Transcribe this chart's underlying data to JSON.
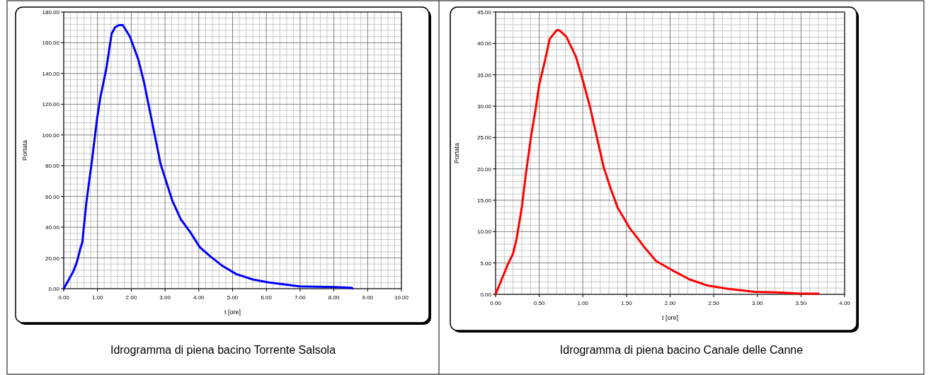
{
  "chart_data": [
    {
      "type": "line",
      "title": "Idrogramma di piena bacino Torrente Salsola",
      "xlabel": "t [ore]",
      "ylabel": "Portata",
      "grid": true,
      "marker": "none",
      "line_style": "solid",
      "xlim": [
        0,
        10
      ],
      "ylim": [
        0,
        180
      ],
      "xticks": [
        {
          "value": 0,
          "label": "0.00"
        },
        {
          "value": 1,
          "label": "1.00"
        },
        {
          "value": 2,
          "label": "2.00"
        },
        {
          "value": 3,
          "label": "3.00"
        },
        {
          "value": 4,
          "label": "4.00"
        },
        {
          "value": 5,
          "label": "5.00"
        },
        {
          "value": 6,
          "label": "6.00"
        },
        {
          "value": 7,
          "label": "7.00"
        },
        {
          "value": 8,
          "label": "8.00"
        },
        {
          "value": 9,
          "label": "9.00"
        },
        {
          "value": 10,
          "label": "10.00"
        }
      ],
      "yticks": [
        {
          "value": 0,
          "label": "0.00"
        },
        {
          "value": 20,
          "label": "20.00"
        },
        {
          "value": 40,
          "label": "40.00"
        },
        {
          "value": 60,
          "label": "60.00"
        },
        {
          "value": 80,
          "label": "80.00"
        },
        {
          "value": 100,
          "label": "100.00"
        },
        {
          "value": 120,
          "label": "120.00"
        },
        {
          "value": 140,
          "label": "140.00"
        },
        {
          "value": 160,
          "label": "160.00"
        },
        {
          "value": 180,
          "label": "180.00"
        }
      ],
      "x": [
        0,
        0.28,
        0.4,
        0.49,
        0.55,
        0.67,
        0.84,
        0.99,
        1.09,
        1.26,
        1.42,
        1.52,
        1.63,
        1.75,
        1.96,
        2.21,
        2.38,
        2.63,
        2.87,
        3.22,
        3.47,
        3.74,
        4.03,
        4.34,
        4.69,
        5.11,
        5.6,
        6.05,
        6.99,
        8.04,
        8.53,
        8.55
      ],
      "series": [
        {
          "color": "#0000ff",
          "values": [
            0,
            11,
            18,
            26,
            30,
            56,
            84,
            111,
            125,
            143,
            166,
            170,
            171.5,
            171.5,
            164,
            149,
            134,
            107,
            81,
            57,
            45,
            37,
            27,
            21,
            15,
            9.5,
            6,
            4.1,
            1.5,
            1,
            0.6,
            0.2
          ]
        }
      ]
    },
    {
      "type": "line",
      "title": "Idrogramma di piena bacino Canale delle Canne",
      "xlabel": "t [ore]",
      "ylabel": "Portata",
      "grid": true,
      "marker": "none",
      "line_style": "solid",
      "xlim": [
        0,
        4
      ],
      "ylim": [
        0,
        45
      ],
      "xticks": [
        {
          "value": 0,
          "label": "0.00"
        },
        {
          "value": 0.5,
          "label": "0.50"
        },
        {
          "value": 1,
          "label": "1.00"
        },
        {
          "value": 1.5,
          "label": "1.50"
        },
        {
          "value": 2,
          "label": "2.00"
        },
        {
          "value": 2.5,
          "label": "2.50"
        },
        {
          "value": 3,
          "label": "3.00"
        },
        {
          "value": 3.5,
          "label": "3.50"
        },
        {
          "value": 4,
          "label": "4.00"
        }
      ],
      "yticks": [
        {
          "value": 0,
          "label": "0.00"
        },
        {
          "value": 5,
          "label": "5.00"
        },
        {
          "value": 10,
          "label": "10.00"
        },
        {
          "value": 15,
          "label": "15.00"
        },
        {
          "value": 20,
          "label": "20.00"
        },
        {
          "value": 25,
          "label": "25.00"
        },
        {
          "value": 30,
          "label": "30.00"
        },
        {
          "value": 35,
          "label": "35.00"
        },
        {
          "value": 40,
          "label": "40.00"
        },
        {
          "value": 45,
          "label": "45.00"
        }
      ],
      "x": [
        0,
        0.135,
        0.2,
        0.24,
        0.3,
        0.35,
        0.41,
        0.46,
        0.5,
        0.57,
        0.62,
        0.7,
        0.73,
        0.81,
        0.92,
        1,
        1.08,
        1.16,
        1.24,
        1.32,
        1.4,
        1.54,
        1.62,
        1.7,
        1.84,
        2.03,
        2.22,
        2.43,
        2.65,
        2.97,
        3.24,
        3.49,
        3.7
      ],
      "series": [
        {
          "color": "#ff0000",
          "values": [
            0,
            4.6,
            6.5,
            8.8,
            13.8,
            19.5,
            25.5,
            29.6,
            33.4,
            37.5,
            40.7,
            42.1,
            42.1,
            41.1,
            37.9,
            34.1,
            30,
            25.1,
            20.2,
            16.8,
            13.8,
            10.5,
            9.1,
            7.6,
            5.3,
            3.8,
            2.4,
            1.4,
            0.9,
            0.4,
            0.3,
            0.1,
            0.1
          ]
        }
      ]
    }
  ]
}
